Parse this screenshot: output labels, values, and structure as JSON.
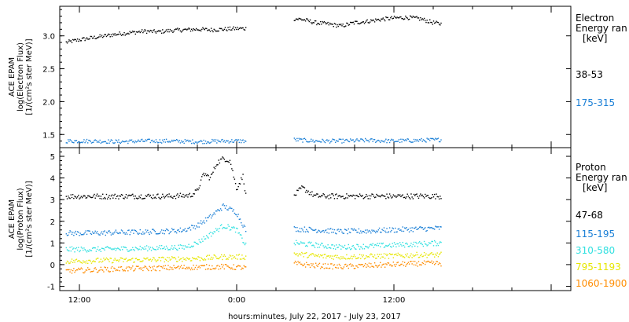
{
  "chart_data": [
    {
      "type": "scatter",
      "panel": "electron",
      "ylabel_lines": [
        "ACE EPAM",
        "log(Electron Flux)",
        "[1/(cm²s ster MeV)]"
      ],
      "ylim": [
        1.3,
        3.45
      ],
      "yticks": [
        1.5,
        2.0,
        2.5,
        3.0
      ],
      "ytick_labels": [
        "1.5",
        "2.0",
        "2.5",
        "3.0"
      ],
      "legend_title_lines": [
        "Electron",
        "Energy ran",
        "[keV]"
      ],
      "legend_position": "right",
      "grid": false,
      "series": [
        {
          "name": "38-53",
          "color": "#000000",
          "segments": [
            {
              "x": [
                -1,
                0,
                1,
                2,
                3,
                4,
                5,
                6,
                7,
                8,
                9,
                10,
                11,
                12,
                12.7
              ],
              "y": [
                2.9,
                2.94,
                2.97,
                3.0,
                3.03,
                3.05,
                3.07,
                3.06,
                3.08,
                3.09,
                3.1,
                3.09,
                3.1,
                3.11,
                3.11
              ]
            },
            {
              "x": [
                16.4,
                17,
                18,
                19,
                20,
                21,
                22,
                23,
                24,
                25,
                26,
                27,
                27.6
              ],
              "y": [
                3.26,
                3.25,
                3.2,
                3.18,
                3.15,
                3.2,
                3.22,
                3.25,
                3.27,
                3.28,
                3.26,
                3.2,
                3.18
              ]
            }
          ]
        },
        {
          "name": "175-315",
          "color": "#1a7fd6",
          "segments": [
            {
              "x": [
                -1,
                1,
                3,
                5,
                7,
                9,
                11,
                12.7
              ],
              "y": [
                1.4,
                1.4,
                1.39,
                1.4,
                1.4,
                1.39,
                1.4,
                1.4
              ]
            },
            {
              "x": [
                16.4,
                18,
                20,
                22,
                24,
                26,
                27.6
              ],
              "y": [
                1.42,
                1.4,
                1.4,
                1.41,
                1.4,
                1.41,
                1.42
              ]
            }
          ]
        }
      ]
    },
    {
      "type": "scatter",
      "panel": "proton",
      "ylabel_lines": [
        "ACE EPAM",
        "log(Proton Flux)",
        "[1/(cm²s ster MeV)]"
      ],
      "ylim": [
        -1.2,
        5.4
      ],
      "yticks": [
        -1,
        0,
        1,
        2,
        3,
        4,
        5
      ],
      "ytick_labels": [
        "-1",
        "0",
        "1",
        "2",
        "3",
        "4",
        "5"
      ],
      "xlabel": "hours:minutes, July 22, 2017 - July 23, 2017",
      "xlim": [
        -1.5,
        37.5
      ],
      "xticks": [
        0,
        12,
        24,
        36
      ],
      "xtick_labels": [
        "12:00",
        "0:00",
        "12:00",
        ""
      ],
      "legend_title_lines": [
        "Proton",
        "Energy ran",
        "[keV]"
      ],
      "legend_position": "right",
      "grid": false,
      "series": [
        {
          "name": "47-68",
          "color": "#000000",
          "segments": [
            {
              "x": [
                -1,
                1,
                3,
                5,
                7,
                8.5,
                9,
                9.5,
                10,
                10.5,
                11,
                11.5,
                12,
                12.5,
                12.7
              ],
              "y": [
                3.15,
                3.15,
                3.15,
                3.16,
                3.15,
                3.2,
                3.4,
                4.2,
                4.0,
                4.7,
                4.9,
                4.8,
                3.5,
                4.1,
                3.2
              ]
            },
            {
              "x": [
                16.4,
                17,
                18,
                20,
                22,
                24,
                26,
                27.6
              ],
              "y": [
                3.18,
                3.55,
                3.16,
                3.15,
                3.16,
                3.15,
                3.16,
                3.15
              ]
            }
          ]
        },
        {
          "name": "115-195",
          "color": "#1a7fd6",
          "segments": [
            {
              "x": [
                -1,
                1,
                3,
                5,
                7,
                8,
                9,
                10,
                11,
                12,
                12.7
              ],
              "y": [
                1.45,
                1.45,
                1.48,
                1.5,
                1.55,
                1.6,
                1.8,
                2.2,
                2.7,
                2.4,
                1.6
              ]
            },
            {
              "x": [
                16.4,
                18,
                20,
                22,
                24,
                26,
                27.6
              ],
              "y": [
                1.65,
                1.6,
                1.52,
                1.55,
                1.6,
                1.65,
                1.68
              ]
            }
          ]
        },
        {
          "name": "310-580",
          "color": "#30e0e0",
          "segments": [
            {
              "x": [
                -1,
                1,
                3,
                5,
                7,
                8,
                9,
                10,
                11,
                12,
                12.7
              ],
              "y": [
                0.7,
                0.7,
                0.72,
                0.75,
                0.78,
                0.8,
                1.0,
                1.4,
                1.8,
                1.6,
                0.9
              ]
            },
            {
              "x": [
                16.4,
                18,
                20,
                22,
                24,
                26,
                27.6
              ],
              "y": [
                1.0,
                0.9,
                0.8,
                0.85,
                0.9,
                0.95,
                1.0
              ]
            }
          ]
        },
        {
          "name": "795-1193",
          "color": "#e6e600",
          "segments": [
            {
              "x": [
                -1,
                1,
                3,
                5,
                7,
                9,
                11,
                12.7
              ],
              "y": [
                0.15,
                0.18,
                0.2,
                0.22,
                0.25,
                0.28,
                0.35,
                0.35
              ]
            },
            {
              "x": [
                16.4,
                18,
                20,
                22,
                24,
                26,
                27.6
              ],
              "y": [
                0.5,
                0.4,
                0.35,
                0.38,
                0.4,
                0.45,
                0.45
              ]
            }
          ]
        },
        {
          "name": "1060-1900",
          "color": "#ff8c00",
          "segments": [
            {
              "x": [
                -1,
                1,
                3,
                5,
                7,
                9,
                11,
                12.7
              ],
              "y": [
                -0.3,
                -0.25,
                -0.2,
                -0.18,
                -0.15,
                -0.12,
                -0.1,
                -0.15
              ]
            },
            {
              "x": [
                16.4,
                18,
                20,
                22,
                24,
                26,
                27.6
              ],
              "y": [
                0.05,
                -0.05,
                -0.1,
                -0.05,
                0.0,
                0.05,
                0.05
              ]
            }
          ]
        }
      ]
    }
  ]
}
